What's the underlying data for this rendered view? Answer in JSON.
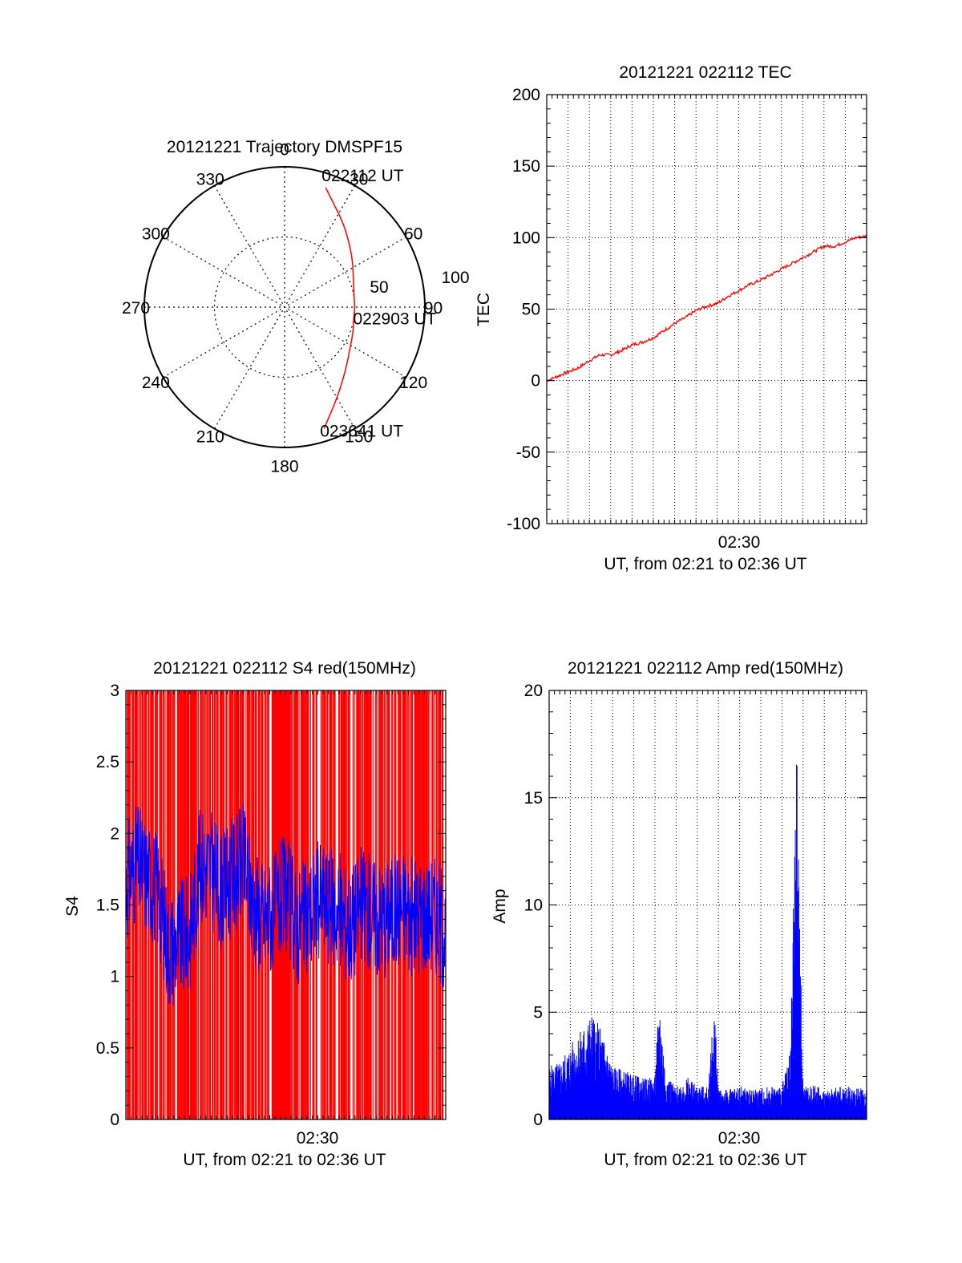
{
  "colors": {
    "red": "#ff0000",
    "blue": "#0000ff",
    "axis": "#000000",
    "grid": "#000000"
  },
  "chart_data": [
    {
      "id": "traj",
      "type": "polar",
      "title": "20121221 Trajectory DMSPF15",
      "angle_labels": [
        "0",
        "30",
        "60",
        "90",
        "120",
        "150",
        "180",
        "210",
        "240",
        "270",
        "300",
        "330"
      ],
      "radial_labels": [
        "50",
        "100"
      ],
      "rlim": [
        0,
        100
      ],
      "radial_grid": [
        50
      ],
      "grid": true,
      "series_color": "red",
      "trajectory": {
        "azimuth_deg": [
          19,
          25,
          35,
          45,
          55,
          65,
          75,
          84,
          91,
          100,
          110,
          122,
          132,
          142,
          152,
          162
        ],
        "range": [
          90,
          82,
          73,
          65,
          59,
          54,
          51,
          50,
          50,
          50,
          52,
          55,
          60,
          67,
          77,
          91
        ]
      },
      "annotations": [
        {
          "text": "022112 UT",
          "azimuth_deg": 19,
          "range": 90
        },
        {
          "text": "022903 UT",
          "azimuth_deg": 91,
          "range": 50
        },
        {
          "text": "023641 UT",
          "azimuth_deg": 162,
          "range": 91
        }
      ]
    },
    {
      "id": "tec",
      "type": "line",
      "title": "20121221 022112 TEC",
      "ylabel": "TEC",
      "xlabel": "UT, from 02:21 to 02:36 UT",
      "xtick_labels": [
        "02:30"
      ],
      "xrange_minutes": [
        0,
        15
      ],
      "ylim": [
        -100,
        200
      ],
      "yticks": [
        -100,
        -50,
        0,
        50,
        100,
        150,
        200
      ],
      "grid": true,
      "series": [
        {
          "color": "red",
          "x": [
            0,
            0.5,
            1,
            1.5,
            2,
            2.5,
            3,
            3.5,
            4,
            4.5,
            5,
            5.5,
            6,
            6.5,
            7,
            7.5,
            8,
            8.5,
            9,
            9.5,
            10,
            10.5,
            11,
            11.5,
            12,
            12.5,
            13,
            13.5,
            14,
            14.5,
            15
          ],
          "y": [
            0,
            3,
            6,
            9,
            14,
            18,
            18,
            21,
            25,
            27,
            30,
            35,
            40,
            44,
            49,
            52,
            54,
            59,
            63,
            67,
            70,
            74,
            78,
            82,
            86,
            90,
            94,
            94,
            97,
            100,
            101
          ]
        }
      ]
    },
    {
      "id": "s4",
      "type": "line",
      "title": "20121221 022112 S4 red(150MHz)",
      "ylabel": "S4",
      "xlabel": "UT, from 02:21 to 02:36 UT",
      "xtick_labels": [
        "02:30"
      ],
      "xrange_minutes": [
        0,
        15
      ],
      "ylim": [
        0,
        3
      ],
      "yticks": [
        "0",
        "0.5",
        "1",
        "1.5",
        "2",
        "2.5",
        "3"
      ],
      "series": [
        {
          "color": "red",
          "style": "dense vertical spikes from 0 to above 3",
          "x_range": [
            0,
            15
          ]
        },
        {
          "color": "blue",
          "x": [
            0,
            0.5,
            1,
            1.5,
            2,
            2.5,
            3,
            3.5,
            4,
            4.5,
            5,
            5.5,
            6,
            6.5,
            7,
            7.5,
            8,
            8.5,
            9,
            9.5,
            10,
            10.5,
            11,
            11.5,
            12,
            12.5,
            13,
            13.5,
            14,
            14.5,
            15
          ],
          "y": [
            1.65,
            1.8,
            1.7,
            1.6,
            1.2,
            1.25,
            1.3,
            1.8,
            1.75,
            1.6,
            1.7,
            1.8,
            1.5,
            1.4,
            1.45,
            1.6,
            1.35,
            1.4,
            1.55,
            1.5,
            1.45,
            1.35,
            1.5,
            1.45,
            1.4,
            1.45,
            1.5,
            1.4,
            1.45,
            1.45,
            1.3
          ]
        }
      ]
    },
    {
      "id": "amp",
      "type": "line",
      "title": "20121221 022112 Amp red(150MHz)",
      "ylabel": "Amp",
      "xlabel": "UT, from 02:21 to 02:36 UT",
      "xtick_labels": [
        "02:30"
      ],
      "xrange_minutes": [
        0,
        15
      ],
      "ylim": [
        0,
        20
      ],
      "yticks": [
        0,
        5,
        10,
        15,
        20
      ],
      "grid": true,
      "series": [
        {
          "color": "blue",
          "style": "dense vertical spikes from 0",
          "x": [
            0,
            0.5,
            1,
            1.5,
            2,
            2.5,
            3,
            3.5,
            4,
            4.5,
            5,
            5.2,
            5.5,
            6,
            6.5,
            7,
            7.5,
            7.8,
            8,
            8.5,
            9,
            9.5,
            10,
            10.5,
            11,
            11.4,
            11.7,
            12,
            12.5,
            13,
            13.5,
            14,
            14.5,
            15
          ],
          "y": [
            2.5,
            2.7,
            3.5,
            4.2,
            5.0,
            4.2,
            2.5,
            2.3,
            2.1,
            1.9,
            2.0,
            5.9,
            2.2,
            1.5,
            2.0,
            1.6,
            1.5,
            5.5,
            1.5,
            1.4,
            1.6,
            1.4,
            1.5,
            1.6,
            1.5,
            3.5,
            17.5,
            1.5,
            1.6,
            1.4,
            1.5,
            1.6,
            1.5,
            1.4
          ]
        }
      ]
    }
  ]
}
